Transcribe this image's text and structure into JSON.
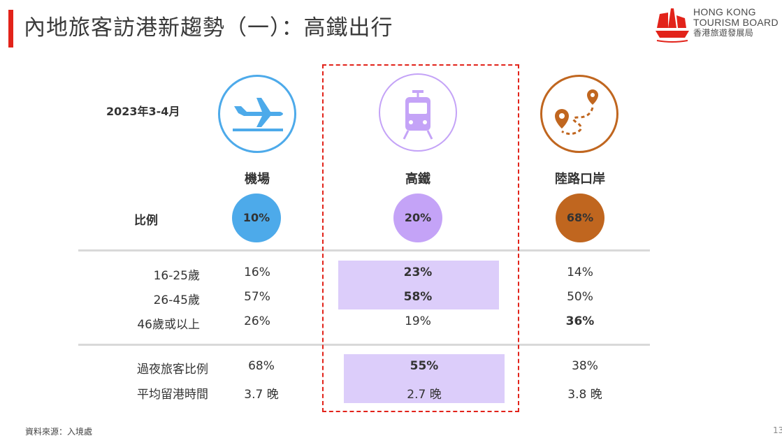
{
  "header": {
    "title": "內地旅客訪港新趨勢（一）：高鐵出行",
    "logo": {
      "line1": "HONG KONG",
      "line2": "TOURISM BOARD",
      "line3": "香港旅遊發展局",
      "color": "#e2231a"
    }
  },
  "period": "2023年3-4月",
  "columns": [
    {
      "name": "機場",
      "ratio": "10%",
      "icon": "airplane-icon",
      "color": "#4daaea"
    },
    {
      "name": "高鐵",
      "ratio": "20%",
      "icon": "train-icon",
      "color": "#c4a3f7"
    },
    {
      "name": "陸路口岸",
      "ratio": "68%",
      "icon": "map-route-icon",
      "color": "#c0661f"
    }
  ],
  "ratio_label": "比例",
  "age_rows": [
    {
      "label": "16-25歲",
      "values": [
        "16%",
        "23%",
        "14%"
      ]
    },
    {
      "label": "26-45歲",
      "values": [
        "57%",
        "58%",
        "50%"
      ]
    },
    {
      "label": "46歲或以上",
      "values": [
        "26%",
        "19%",
        "36%"
      ]
    }
  ],
  "stay_rows": [
    {
      "label": "過夜旅客比例",
      "values": [
        "68%",
        "55%",
        "38%"
      ]
    },
    {
      "label": "平均留港時間",
      "values": [
        "3.7 晚",
        "2.7 晚",
        "3.8 晚"
      ]
    }
  ],
  "footnote": "資料來源：入境處",
  "page_number": "13",
  "colors": {
    "accent": "#e2231a",
    "highlight": "#dccdfa",
    "divider": "#d9d9d9"
  }
}
